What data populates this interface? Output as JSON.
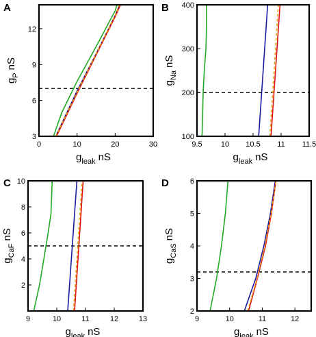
{
  "chart_data": [
    {
      "panel": "A",
      "type": "line",
      "xlabel": {
        "main": "g",
        "sub": "leak",
        "unit": "nS"
      },
      "ylabel": {
        "main": "g",
        "sub": "P",
        "unit": "nS"
      },
      "xlim": [
        0,
        30
      ],
      "ylim": [
        3,
        14
      ],
      "xticks": [
        0,
        10,
        20,
        30
      ],
      "yticks": [
        3,
        6,
        9,
        12
      ],
      "hline": 7,
      "series": [
        {
          "color": "#22aa22",
          "dash": false,
          "points": [
            [
              3.8,
              3
            ],
            [
              6,
              5
            ],
            [
              10,
              7.6
            ],
            [
              15,
              10.5
            ],
            [
              20,
              13.5
            ],
            [
              20.5,
              14
            ]
          ]
        },
        {
          "color": "#1a1aa0",
          "dash": false,
          "points": [
            [
              4.4,
              3
            ],
            [
              10,
              6.8
            ],
            [
              15,
              9.9
            ],
            [
              20,
              13.1
            ],
            [
              21.2,
              14
            ]
          ]
        },
        {
          "color": "#dd1111",
          "dash": false,
          "points": [
            [
              4.6,
              3
            ],
            [
              10,
              6.6
            ],
            [
              15,
              9.8
            ],
            [
              20,
              13.0
            ],
            [
              21.4,
              14
            ]
          ]
        },
        {
          "color": "#e6a817",
          "dash": true,
          "points": [
            [
              4.4,
              3
            ],
            [
              10,
              6.7
            ],
            [
              15,
              9.9
            ],
            [
              20,
              13.1
            ],
            [
              21.1,
              14
            ]
          ]
        }
      ]
    },
    {
      "panel": "B",
      "type": "line",
      "xlabel": {
        "main": "g",
        "sub": "leak",
        "unit": "nS"
      },
      "ylabel": {
        "main": "g",
        "sub": "Na",
        "unit": "nS"
      },
      "xlim": [
        9.5,
        11.5
      ],
      "ylim": [
        100,
        400
      ],
      "xticks": [
        9.5,
        10,
        10.5,
        11,
        11.5
      ],
      "yticks": [
        100,
        200,
        300,
        400
      ],
      "hline": 200,
      "series": [
        {
          "color": "#22aa22",
          "dash": false,
          "points": [
            [
              9.59,
              100
            ],
            [
              9.61,
              200
            ],
            [
              9.63,
              250
            ],
            [
              9.66,
              300
            ],
            [
              9.67,
              350
            ],
            [
              9.67,
              400
            ]
          ]
        },
        {
          "color": "#1a1aa0",
          "dash": false,
          "points": [
            [
              10.6,
              100
            ],
            [
              10.76,
              400
            ]
          ]
        },
        {
          "color": "#dd1111",
          "dash": false,
          "points": [
            [
              10.82,
              100
            ],
            [
              10.98,
              400
            ]
          ]
        },
        {
          "color": "#e6a817",
          "dash": true,
          "points": [
            [
              10.8,
              100
            ],
            [
              10.95,
              400
            ]
          ]
        }
      ]
    },
    {
      "panel": "C",
      "type": "line",
      "xlabel": {
        "main": "g",
        "sub": "leak",
        "unit": "nS"
      },
      "ylabel": {
        "main": "g",
        "sub": "CaF",
        "unit": "nS"
      },
      "xlim": [
        9,
        13
      ],
      "ylim": [
        0,
        10
      ],
      "xticks": [
        9,
        10,
        11,
        12,
        13
      ],
      "yticks": [
        2,
        4,
        6,
        8,
        10
      ],
      "hline": 5,
      "series": [
        {
          "color": "#22aa22",
          "dash": false,
          "points": [
            [
              9.2,
              0
            ],
            [
              9.4,
              2
            ],
            [
              9.55,
              4
            ],
            [
              9.7,
              6
            ],
            [
              9.8,
              7.5
            ],
            [
              9.84,
              10
            ]
          ]
        },
        {
          "color": "#1a1aa0",
          "dash": false,
          "points": [
            [
              10.38,
              0
            ],
            [
              10.7,
              10
            ]
          ]
        },
        {
          "color": "#dd1111",
          "dash": false,
          "points": [
            [
              10.62,
              0
            ],
            [
              10.92,
              10
            ]
          ]
        },
        {
          "color": "#e6a817",
          "dash": true,
          "points": [
            [
              10.58,
              0
            ],
            [
              10.88,
              10
            ]
          ]
        }
      ]
    },
    {
      "panel": "D",
      "type": "line",
      "xlabel": {
        "main": "g",
        "sub": "leak",
        "unit": "nS"
      },
      "ylabel": {
        "main": "g",
        "sub": "CaS",
        "unit": "nS"
      },
      "xlim": [
        9,
        12.5
      ],
      "ylim": [
        2,
        6
      ],
      "xticks": [
        9,
        10,
        11,
        12
      ],
      "yticks": [
        2,
        3,
        4,
        5,
        6
      ],
      "hline": 3.2,
      "series": [
        {
          "color": "#22aa22",
          "dash": false,
          "points": [
            [
              9.4,
              2
            ],
            [
              9.6,
              3
            ],
            [
              9.75,
              4
            ],
            [
              9.87,
              5
            ],
            [
              9.95,
              6
            ]
          ]
        },
        {
          "color": "#1a1aa0",
          "dash": false,
          "points": [
            [
              10.45,
              2
            ],
            [
              10.8,
              3
            ],
            [
              11.05,
              4
            ],
            [
              11.25,
              5
            ],
            [
              11.4,
              6
            ]
          ]
        },
        {
          "color": "#dd1111",
          "dash": false,
          "points": [
            [
              10.58,
              2
            ],
            [
              10.85,
              3
            ],
            [
              11.1,
              4
            ],
            [
              11.28,
              5
            ],
            [
              11.42,
              6
            ]
          ]
        },
        {
          "color": "#e6a817",
          "dash": true,
          "points": [
            [
              10.55,
              2
            ],
            [
              10.84,
              3
            ],
            [
              11.08,
              4
            ],
            [
              11.27,
              5
            ],
            [
              11.42,
              6
            ]
          ]
        }
      ]
    }
  ]
}
